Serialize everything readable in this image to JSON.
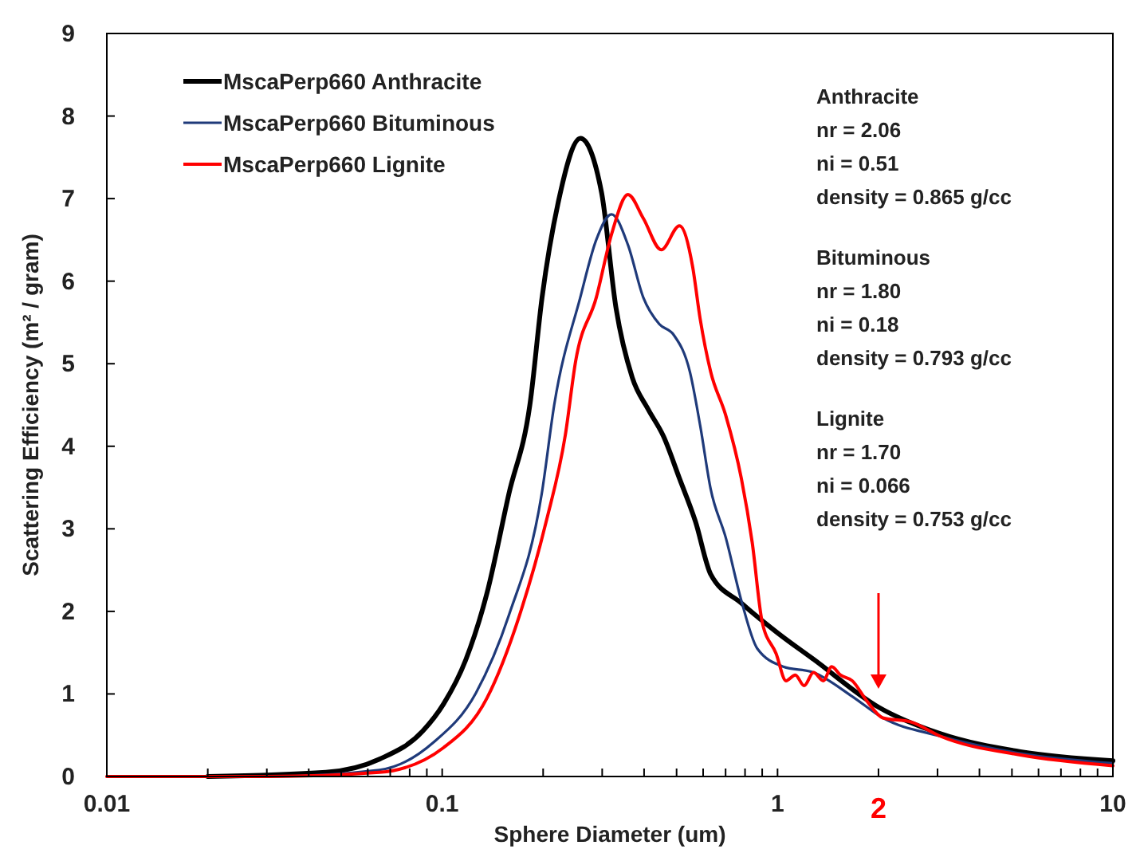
{
  "chart_data": {
    "type": "line",
    "xlabel": "Sphere Diameter (um)",
    "ylabel": "Scattering Efficiency (m² / gram)",
    "log": "x",
    "xlim": [
      0.01,
      10
    ],
    "ylim": [
      0,
      9
    ],
    "xticks": [
      0.01,
      {
        "value": 0.02,
        "label": null
      },
      {
        "value": 0.03,
        "label": null
      },
      {
        "value": 0.04,
        "label": null
      },
      {
        "value": 0.05,
        "label": null
      },
      {
        "value": 0.06,
        "label": null
      },
      {
        "value": 0.07,
        "label": null
      },
      {
        "value": 0.08,
        "label": null
      },
      {
        "value": 0.09,
        "label": null
      },
      0.1,
      {
        "value": 0.2,
        "label": null
      },
      {
        "value": 0.3,
        "label": null
      },
      {
        "value": 0.4,
        "label": null
      },
      {
        "value": 0.5,
        "label": null
      },
      {
        "value": 0.6,
        "label": null
      },
      {
        "value": 0.7,
        "label": null
      },
      {
        "value": 0.8,
        "label": null
      },
      {
        "value": 0.9,
        "label": null
      },
      1,
      {
        "value": 2,
        "label": "2"
      },
      {
        "value": 3,
        "label": null
      },
      {
        "value": 4,
        "label": null
      },
      {
        "value": 5,
        "label": null
      },
      {
        "value": 6,
        "label": null
      },
      {
        "value": 7,
        "label": null
      },
      {
        "value": 8,
        "label": null
      },
      {
        "value": 9,
        "label": null
      },
      10
    ],
    "yticks": [
      0,
      1,
      2,
      3,
      4,
      5,
      6,
      7,
      8,
      9
    ],
    "grid": false,
    "legend": "top left",
    "marker": "none",
    "line_style": "solid",
    "series": [
      {
        "name": "MscaPerp660 Anthracite",
        "color": "#000000",
        "x": [
          0.02,
          0.045,
          0.065,
          0.0875,
          0.101,
          0.1175,
          0.136,
          0.158,
          0.183,
          0.1985,
          0.222,
          0.2585,
          0.2985,
          0.33,
          0.369,
          0.411,
          0.457,
          0.51,
          0.569,
          0.632,
          0.78,
          1.0,
          1.28,
          2.0,
          3.05,
          5.3,
          10
        ],
        "values": [
          0,
          0.05,
          0.21,
          0.55,
          0.88,
          1.41,
          2.22,
          3.42,
          4.53,
          5.8,
          6.96,
          7.73,
          7.08,
          5.67,
          4.83,
          4.45,
          4.12,
          3.61,
          3.09,
          2.45,
          2.1,
          1.74,
          1.42,
          0.84,
          0.52,
          0.3,
          0.19
        ]
      },
      {
        "name": "MscaPerp660 Bituminous",
        "color": "#1f3a7a",
        "x": [
          0.01,
          0.03,
          0.065,
          0.094,
          0.126,
          0.158,
          0.198,
          0.216,
          0.258,
          0.288,
          0.32,
          0.358,
          0.398,
          0.444,
          0.49,
          0.548,
          0.588,
          0.632,
          0.7,
          0.78,
          0.87,
          1.04,
          1.28,
          1.67,
          2.06,
          3.05,
          5.3,
          10
        ],
        "values": [
          0,
          0,
          0.08,
          0.41,
          1.01,
          1.95,
          3.42,
          4.51,
          5.8,
          6.5,
          6.81,
          6.44,
          5.8,
          5.48,
          5.35,
          4.9,
          4.25,
          3.48,
          2.9,
          2.13,
          1.55,
          1.33,
          1.26,
          0.97,
          0.71,
          0.49,
          0.28,
          0.16
        ]
      },
      {
        "name": "MscaPerp660 Lignite",
        "color": "#ff0000",
        "x": [
          0.01,
          0.03,
          0.065,
          0.101,
          0.136,
          0.17,
          0.204,
          0.233,
          0.25,
          0.288,
          0.32,
          0.358,
          0.398,
          0.45,
          0.51,
          0.558,
          0.588,
          0.632,
          0.7,
          0.78,
          0.84,
          0.9,
          0.99,
          1.06,
          1.13,
          1.2,
          1.28,
          1.37,
          1.45,
          1.54,
          1.67,
          1.85,
          2.06,
          2.5,
          3.05,
          5.3,
          10
        ],
        "values": [
          0,
          0,
          0.05,
          0.35,
          0.95,
          1.95,
          3.08,
          4.14,
          5.03,
          5.8,
          6.57,
          7.05,
          6.76,
          6.38,
          6.67,
          6.18,
          5.54,
          4.9,
          4.38,
          3.61,
          2.84,
          1.87,
          1.49,
          1.16,
          1.23,
          1.1,
          1.26,
          1.16,
          1.33,
          1.23,
          1.16,
          0.91,
          0.71,
          0.66,
          0.49,
          0.26,
          0.13
        ]
      }
    ],
    "annotations": [
      "Anthracite\nnr = 2.06\nni = 0.51\ndensity = 0.865 g/cc",
      "Bituminous\nnr = 1.80\nni = 0.18\ndensity = 0.793 g/cc",
      "Lignite\nnr = 1.70\nni = 0.066\ndensity = 0.753 g/cc"
    ]
  }
}
